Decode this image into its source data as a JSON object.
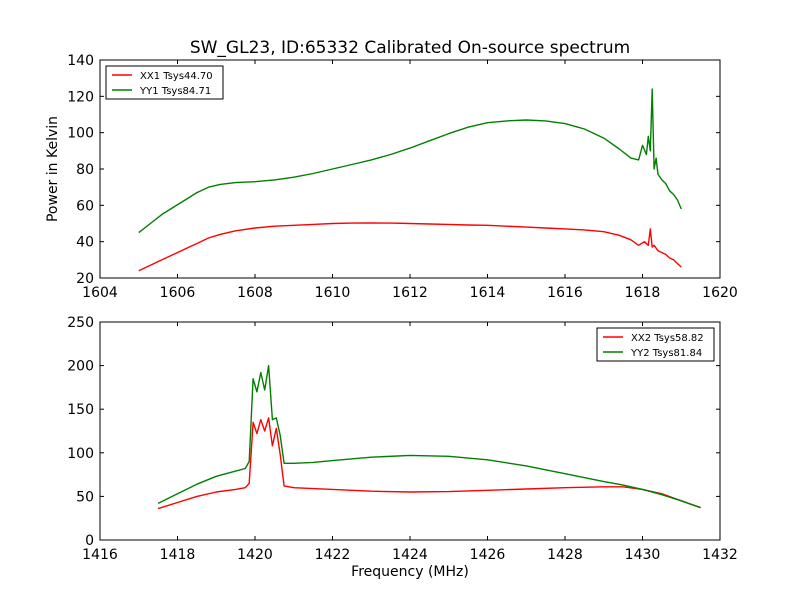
{
  "chart_data": [
    {
      "type": "line",
      "title": "SW_GL23, ID:65332 Calibrated On-source spectrum",
      "xlabel": "",
      "ylabel": "Power in Kelvin",
      "xlim": [
        1604,
        1620
      ],
      "ylim": [
        20,
        140
      ],
      "xticks": [
        "1604",
        "1606",
        "1608",
        "1610",
        "1612",
        "1614",
        "1616",
        "1618",
        "1620"
      ],
      "yticks": [
        "20",
        "40",
        "60",
        "80",
        "100",
        "120",
        "140"
      ],
      "legend_position": "top-left",
      "series": [
        {
          "name": "XX1 Tsys44.70",
          "color": "#ff0000",
          "x": [
            1605.0,
            1605.3,
            1605.6,
            1605.9,
            1606.2,
            1606.5,
            1606.8,
            1607.1,
            1607.5,
            1608.0,
            1608.5,
            1609.0,
            1609.5,
            1610.0,
            1610.5,
            1611.0,
            1611.5,
            1612.0,
            1612.5,
            1613.0,
            1613.5,
            1614.0,
            1614.5,
            1615.0,
            1615.5,
            1616.0,
            1616.5,
            1617.0,
            1617.4,
            1617.7,
            1617.9,
            1618.05,
            1618.15,
            1618.2,
            1618.25,
            1618.3,
            1618.4,
            1618.5,
            1618.6,
            1618.7,
            1618.8,
            1618.9,
            1619.0
          ],
          "values": [
            24,
            27,
            30,
            33,
            36,
            39,
            42,
            44,
            46,
            47.5,
            48.5,
            49,
            49.5,
            50,
            50.2,
            50.3,
            50.2,
            50,
            49.7,
            49.5,
            49.2,
            49,
            48.5,
            48,
            47.5,
            47,
            46.5,
            45.5,
            43.5,
            41,
            38,
            40,
            38,
            47,
            37,
            38,
            35,
            34,
            33,
            31,
            30,
            28,
            26
          ]
        },
        {
          "name": "YY1 Tsys84.71",
          "color": "#008000",
          "x": [
            1605.0,
            1605.3,
            1605.6,
            1605.9,
            1606.2,
            1606.5,
            1606.8,
            1607.1,
            1607.5,
            1608.0,
            1608.5,
            1609.0,
            1609.5,
            1610.0,
            1610.5,
            1611.0,
            1611.5,
            1612.0,
            1612.5,
            1613.0,
            1613.5,
            1614.0,
            1614.5,
            1615.0,
            1615.5,
            1616.0,
            1616.5,
            1617.0,
            1617.4,
            1617.7,
            1617.9,
            1618.0,
            1618.1,
            1618.15,
            1618.2,
            1618.25,
            1618.3,
            1618.35,
            1618.4,
            1618.5,
            1618.6,
            1618.7,
            1618.8,
            1618.9,
            1619.0
          ],
          "values": [
            45,
            50,
            55,
            59,
            63,
            67,
            70,
            71.5,
            72.5,
            73,
            74,
            75.5,
            77.5,
            80,
            82.5,
            85,
            88,
            91.5,
            95.5,
            99.5,
            103,
            105.5,
            106.5,
            107,
            106.5,
            105,
            102,
            97,
            91,
            86,
            85,
            93,
            88,
            98,
            90,
            124,
            80,
            86,
            77,
            74,
            72,
            68,
            66,
            63,
            58
          ]
        }
      ]
    },
    {
      "type": "line",
      "title": "",
      "xlabel": "Frequency (MHz)",
      "ylabel": "",
      "xlim": [
        1416,
        1432
      ],
      "ylim": [
        0,
        250
      ],
      "xticks": [
        "1416",
        "1418",
        "1420",
        "1422",
        "1424",
        "1426",
        "1428",
        "1430",
        "1432"
      ],
      "yticks": [
        "0",
        "50",
        "100",
        "150",
        "200",
        "250"
      ],
      "legend_position": "top-right",
      "series": [
        {
          "name": "XX2 Tsys58.82",
          "color": "#ff0000",
          "x": [
            1417.5,
            1418.0,
            1418.5,
            1419.0,
            1419.5,
            1419.75,
            1419.85,
            1419.95,
            1420.05,
            1420.15,
            1420.25,
            1420.35,
            1420.45,
            1420.55,
            1420.65,
            1420.75,
            1421.0,
            1421.5,
            1422.0,
            1423.0,
            1424.0,
            1425.0,
            1426.0,
            1427.0,
            1428.0,
            1429.0,
            1429.5,
            1430.0,
            1430.5,
            1431.0,
            1431.5
          ],
          "values": [
            36,
            43,
            50,
            55,
            58,
            60,
            65,
            135,
            122,
            138,
            125,
            140,
            108,
            128,
            98,
            62,
            60,
            59,
            58,
            56,
            55,
            55.5,
            57,
            58.5,
            60,
            61,
            61,
            58,
            53,
            45,
            37
          ]
        },
        {
          "name": "YY2 Tsys81.84",
          "color": "#008000",
          "x": [
            1417.5,
            1418.0,
            1418.5,
            1419.0,
            1419.5,
            1419.75,
            1419.85,
            1419.95,
            1420.05,
            1420.15,
            1420.25,
            1420.35,
            1420.45,
            1420.55,
            1420.65,
            1420.75,
            1421.0,
            1421.5,
            1422.0,
            1423.0,
            1424.0,
            1425.0,
            1426.0,
            1427.0,
            1428.0,
            1429.0,
            1429.5,
            1430.0,
            1430.5,
            1431.0,
            1431.5
          ],
          "values": [
            42,
            53,
            64,
            73,
            79,
            82,
            90,
            185,
            170,
            192,
            172,
            200,
            138,
            140,
            120,
            88,
            88,
            89,
            91,
            95,
            97,
            96,
            92,
            85,
            76,
            67,
            63,
            58,
            52,
            45,
            37
          ]
        }
      ]
    }
  ]
}
